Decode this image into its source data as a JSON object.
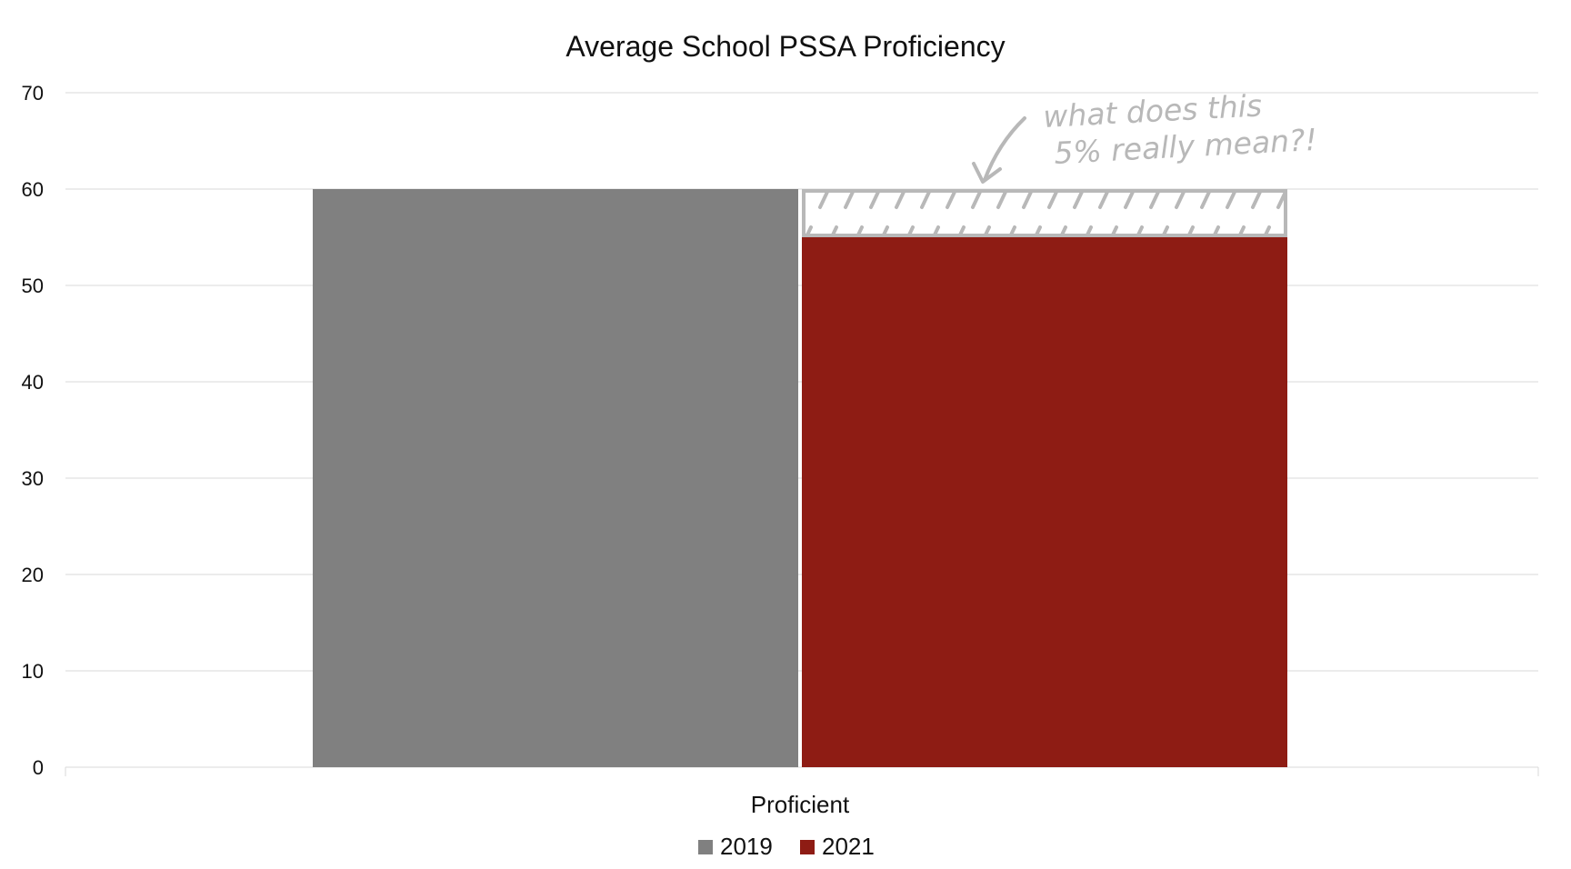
{
  "chart_data": {
    "type": "bar",
    "title": "Average School PSSA Proficiency",
    "xlabel": "",
    "ylabel": "",
    "categories": [
      "Proficient"
    ],
    "series": [
      {
        "name": "2019",
        "values": [
          60
        ],
        "color": "#808080"
      },
      {
        "name": "2021",
        "values": [
          55
        ],
        "color": "#8e1c14"
      }
    ],
    "ylim": [
      0,
      70
    ],
    "yticks": [
      0,
      10,
      20,
      30,
      40,
      50,
      60,
      70
    ],
    "grid": true,
    "legend_position": "bottom",
    "annotation": {
      "lines": [
        "what does this",
        "5% really mean?!"
      ],
      "color": "#b8b8b8",
      "highlight_range": [
        55,
        60
      ]
    }
  }
}
